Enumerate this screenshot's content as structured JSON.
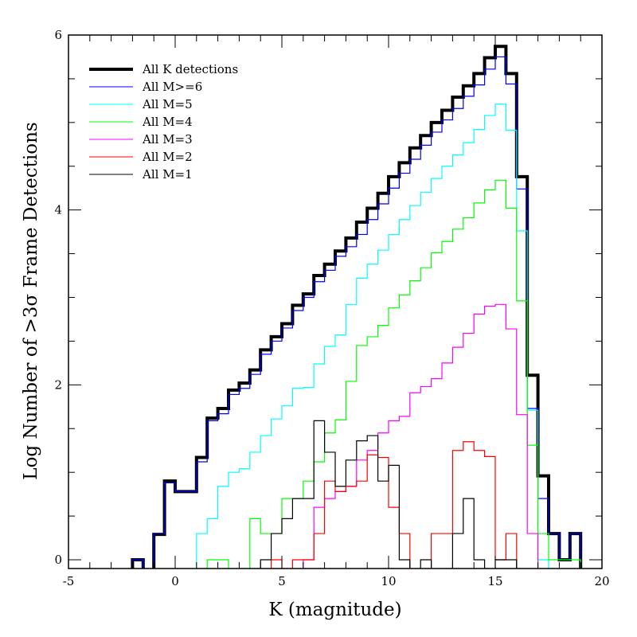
{
  "chart_data": {
    "type": "histogram-step",
    "xlabel": "K (magnitude)",
    "ylabel": "Log Number of >3σ Frame Detections",
    "xlim": [
      -5,
      20
    ],
    "ylim": [
      -0.1,
      6
    ],
    "x_ticks": [
      "-5",
      "0",
      "5",
      "10",
      "15",
      "20"
    ],
    "y_ticks": [
      "0",
      "2",
      "4",
      "6"
    ],
    "grid": false,
    "legend_position": "top-left",
    "bin_width": 0.5,
    "bin_starts": [
      -2,
      -1.5,
      -1,
      -0.5,
      0,
      0.5,
      1,
      1.5,
      2,
      2.5,
      3,
      3.5,
      4,
      4.5,
      5,
      5.5,
      6,
      6.5,
      7,
      7.5,
      8,
      8.5,
      9,
      9.5,
      10,
      10.5,
      11,
      11.5,
      12,
      12.5,
      13,
      13.5,
      14,
      14.5,
      15,
      15.5,
      16,
      16.5,
      17,
      17.5,
      18,
      18.5
    ],
    "series": [
      {
        "name": "All K detections",
        "color": "#000000",
        "thick": true,
        "values": [
          0,
          null,
          0.29,
          0.9,
          0.78,
          0.78,
          1.17,
          1.62,
          1.73,
          1.94,
          2.02,
          2.17,
          2.4,
          2.55,
          2.7,
          2.91,
          3.04,
          3.25,
          3.38,
          3.53,
          3.68,
          3.86,
          4.02,
          4.19,
          4.38,
          4.54,
          4.71,
          4.85,
          5.0,
          5.14,
          5.29,
          5.42,
          5.56,
          5.74,
          5.87,
          5.56,
          4.38,
          2.11,
          0.96,
          0.3,
          0,
          0.3
        ]
      },
      {
        "name": "All M>=6",
        "color": "#0000ff",
        "thick": false,
        "values": [
          0,
          null,
          0.3,
          0.88,
          0.78,
          0.78,
          1.12,
          1.59,
          1.67,
          1.89,
          1.96,
          2.12,
          2.35,
          2.5,
          2.65,
          2.85,
          3.0,
          3.18,
          3.31,
          3.47,
          3.58,
          3.72,
          3.89,
          4.07,
          4.25,
          4.42,
          4.58,
          4.74,
          4.89,
          5.03,
          5.16,
          5.3,
          5.43,
          5.61,
          5.75,
          5.44,
          4.24,
          1.73,
          0.7,
          0.3,
          0,
          0.3
        ]
      },
      {
        "name": "All M=5",
        "color": "#00ffff",
        "thick": false,
        "values": [
          null,
          null,
          null,
          null,
          null,
          null,
          0.3,
          0.47,
          0.84,
          1.0,
          1.04,
          1.23,
          1.42,
          1.61,
          1.76,
          1.96,
          1.97,
          2.24,
          2.44,
          2.57,
          2.92,
          3.22,
          3.38,
          3.54,
          3.72,
          3.89,
          4.05,
          4.2,
          4.36,
          4.5,
          4.63,
          4.77,
          4.92,
          5.08,
          5.21,
          4.91,
          3.76,
          1.71,
          0,
          null,
          null,
          null
        ]
      },
      {
        "name": "All M=4",
        "color": "#00ff00",
        "thick": false,
        "values": [
          null,
          null,
          null,
          null,
          null,
          null,
          null,
          0,
          0,
          null,
          null,
          0.47,
          0.3,
          0.3,
          0.7,
          0.7,
          0.9,
          1.12,
          1.45,
          1.6,
          2.04,
          2.45,
          2.55,
          2.68,
          2.88,
          3.03,
          3.19,
          3.34,
          3.51,
          3.64,
          3.78,
          3.91,
          4.08,
          4.23,
          4.34,
          4.02,
          2.96,
          1.31,
          0.3,
          0,
          0,
          0
        ]
      },
      {
        "name": "All M=3",
        "color": "#ff00ff",
        "thick": false,
        "values": [
          null,
          null,
          null,
          null,
          null,
          null,
          null,
          null,
          null,
          null,
          null,
          null,
          null,
          null,
          null,
          null,
          0,
          0.6,
          0.7,
          0.78,
          0.84,
          1.14,
          1.25,
          1.45,
          1.59,
          1.64,
          1.91,
          1.98,
          2.07,
          2.25,
          2.43,
          2.59,
          2.81,
          2.9,
          2.92,
          2.64,
          1.66,
          0.3,
          null,
          null,
          null,
          null
        ]
      },
      {
        "name": "All M=2",
        "color": "#ff0000",
        "thick": false,
        "values": [
          null,
          null,
          null,
          null,
          null,
          null,
          null,
          null,
          null,
          null,
          null,
          null,
          null,
          0,
          null,
          0,
          0,
          0.3,
          0.9,
          0.78,
          0.84,
          0.9,
          1.2,
          1.17,
          0.6,
          0.3,
          null,
          null,
          0.3,
          0.3,
          1.25,
          1.35,
          1.25,
          1.18,
          0,
          0.3,
          null,
          null,
          null,
          null,
          null,
          null
        ]
      },
      {
        "name": "All M=1",
        "color": "#000000",
        "thick": false,
        "values": [
          null,
          null,
          null,
          null,
          null,
          null,
          null,
          null,
          null,
          null,
          null,
          null,
          0,
          0.3,
          0.47,
          0.7,
          0.7,
          1.59,
          1.23,
          0.84,
          1.14,
          1.36,
          1.42,
          0.9,
          1.08,
          0,
          null,
          0,
          null,
          null,
          0.3,
          0.7,
          0,
          null,
          0,
          0,
          null,
          null,
          null,
          null,
          null,
          null
        ]
      }
    ]
  }
}
